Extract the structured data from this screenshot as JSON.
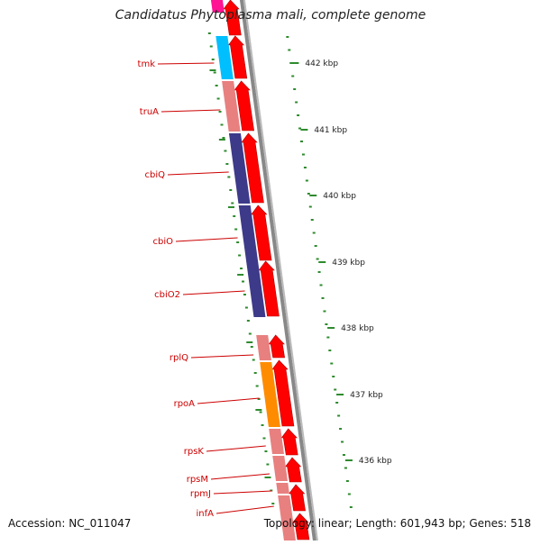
{
  "title": "Candidatus Phytoplasma mali, complete genome",
  "footer": {
    "accession": "Accession: NC_011047",
    "topology": "Topology: linear; Length: 601,943 bp; Genes: 518"
  },
  "colors": {
    "pink": "#e88080",
    "magenta": "#ff1493",
    "cyan": "#00bfff",
    "navy": "#3d3a8a",
    "orange": "#ff8c00",
    "red_arrow": "#ff0000",
    "gene_label": "#cc0000",
    "tick_green": "#2e8b2e",
    "backbone": "#888888"
  },
  "genes": [
    {
      "name": "tmk",
      "color": "cyan"
    },
    {
      "name": "truA",
      "color": "pink"
    },
    {
      "name": "cbiQ",
      "color": "navy"
    },
    {
      "name": "cbiO",
      "color": "navy"
    },
    {
      "name": "cbiO2",
      "color": "navy"
    },
    {
      "name": "rplQ",
      "color": "pink"
    },
    {
      "name": "rpoA",
      "color": "orange"
    },
    {
      "name": "rpsK",
      "color": "pink"
    },
    {
      "name": "rpsM",
      "color": "pink"
    },
    {
      "name": "rpmJ",
      "color": "pink"
    },
    {
      "name": "infA",
      "color": "pink"
    }
  ],
  "scale_labels": [
    "442 kbp",
    "441 kbp",
    "440 kbp",
    "439 kbp",
    "438 kbp",
    "437 kbp",
    "436 kbp"
  ]
}
